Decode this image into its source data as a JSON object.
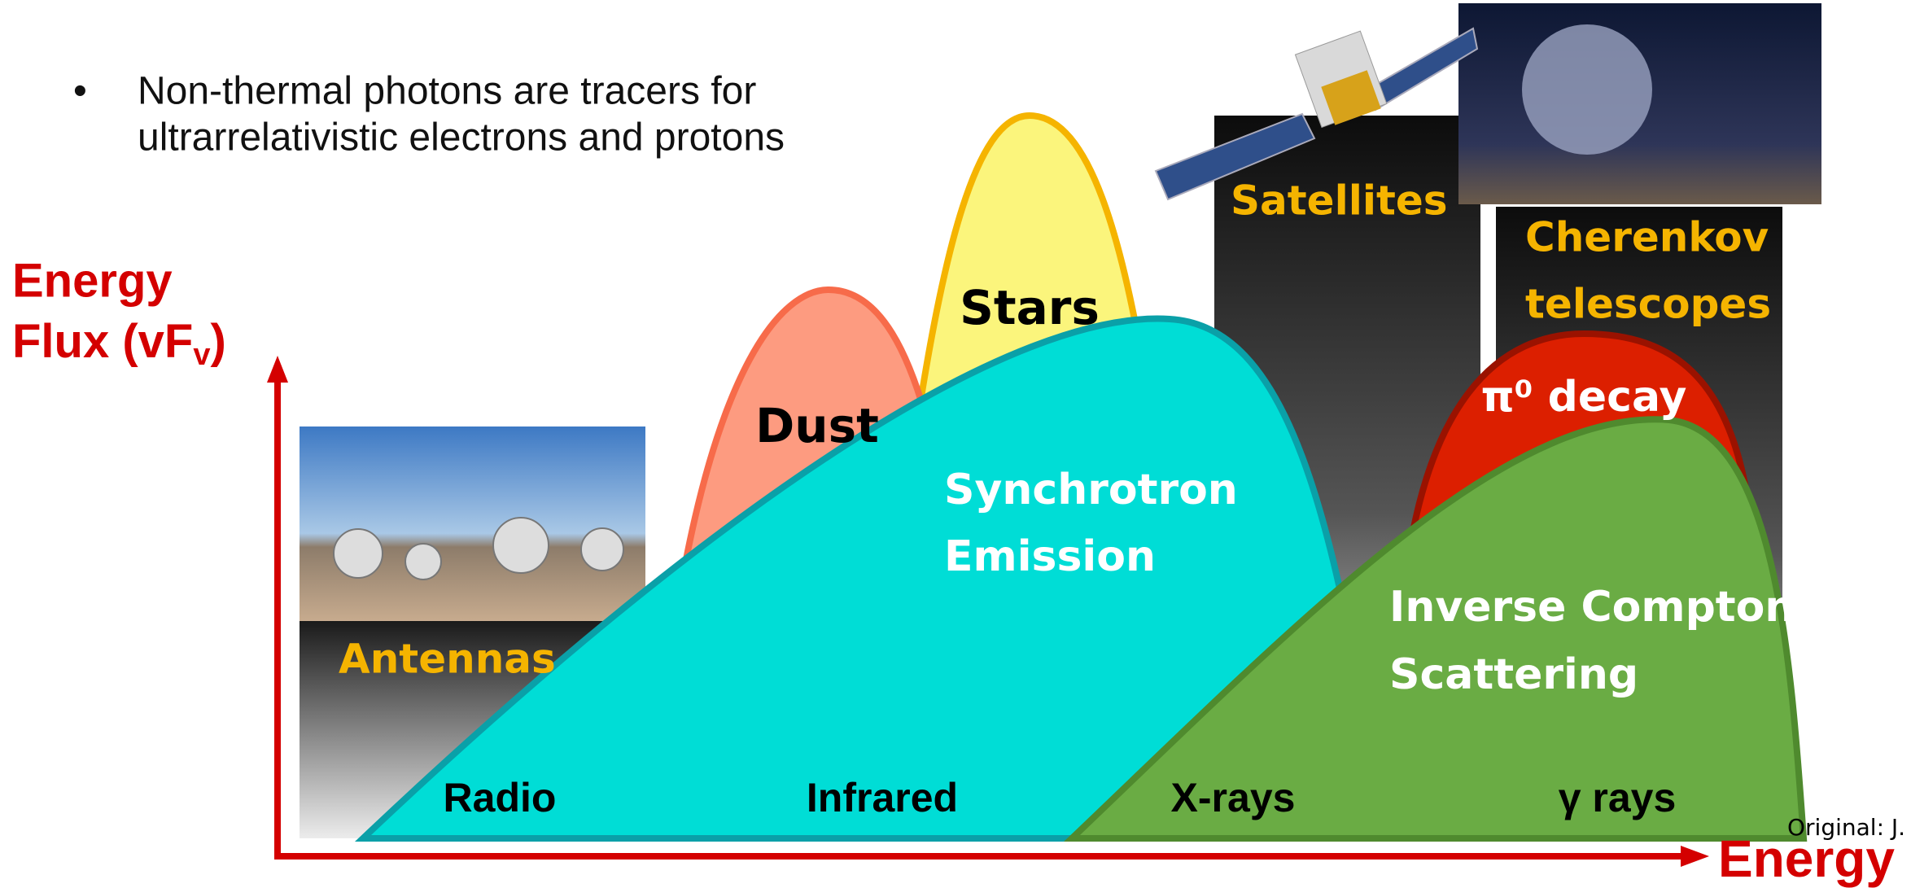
{
  "bullet": {
    "line1": "Non-thermal photons are tracers for",
    "line2": "ultrarrelativistic electrons and protons"
  },
  "y_axis": {
    "line1": "Energy",
    "line2": "Flux (vF",
    "subscript": "v",
    "close": ")"
  },
  "x_axis": {
    "label": "Energy"
  },
  "credit": "Original: J. H",
  "instruments": {
    "antennas": "Antennas",
    "satellites": "Satellites",
    "cherenkov1": "Cherenkov",
    "cherenkov2": "telescopes"
  },
  "components": {
    "stars": "Stars",
    "dust": "Dust",
    "synchrotron1": "Synchrotron",
    "synchrotron2": "Emission",
    "pion": "π⁰ decay",
    "ic1": "Inverse Compton",
    "ic2": "Scattering"
  },
  "bands": [
    "Radio",
    "Infrared",
    "X-rays",
    "γ rays"
  ]
}
